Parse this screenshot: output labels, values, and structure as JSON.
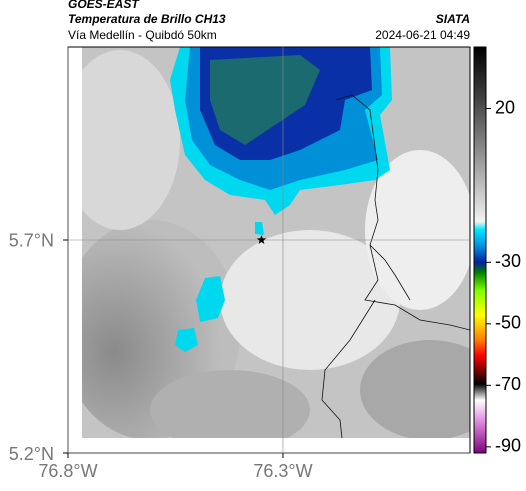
{
  "header": {
    "satellite": "GOES-EAST",
    "title": "Temperatura de Brillo CH13",
    "subtitle": "Vía Medellín - Quibdó 50km",
    "source": "SIATA",
    "datetime": "2024-06-21 04:49"
  },
  "map": {
    "xlim": [
      -76.8,
      -75.865
    ],
    "ylim": [
      5.2,
      6.153
    ],
    "xticks": [
      {
        "value": -76.8,
        "label": "76.8°W"
      },
      {
        "value": -76.3,
        "label": "76.3°W"
      }
    ],
    "yticks": [
      {
        "value": 5.7,
        "label": "5.7°N"
      },
      {
        "value": 5.2,
        "label": "5.2°N"
      }
    ],
    "grid": true,
    "station": {
      "lon": -76.35,
      "lat": 5.7
    }
  },
  "colorbar": {
    "lim": [
      -92,
      40
    ],
    "ticks": [
      20,
      -30,
      -50,
      -70,
      -90
    ]
  }
}
